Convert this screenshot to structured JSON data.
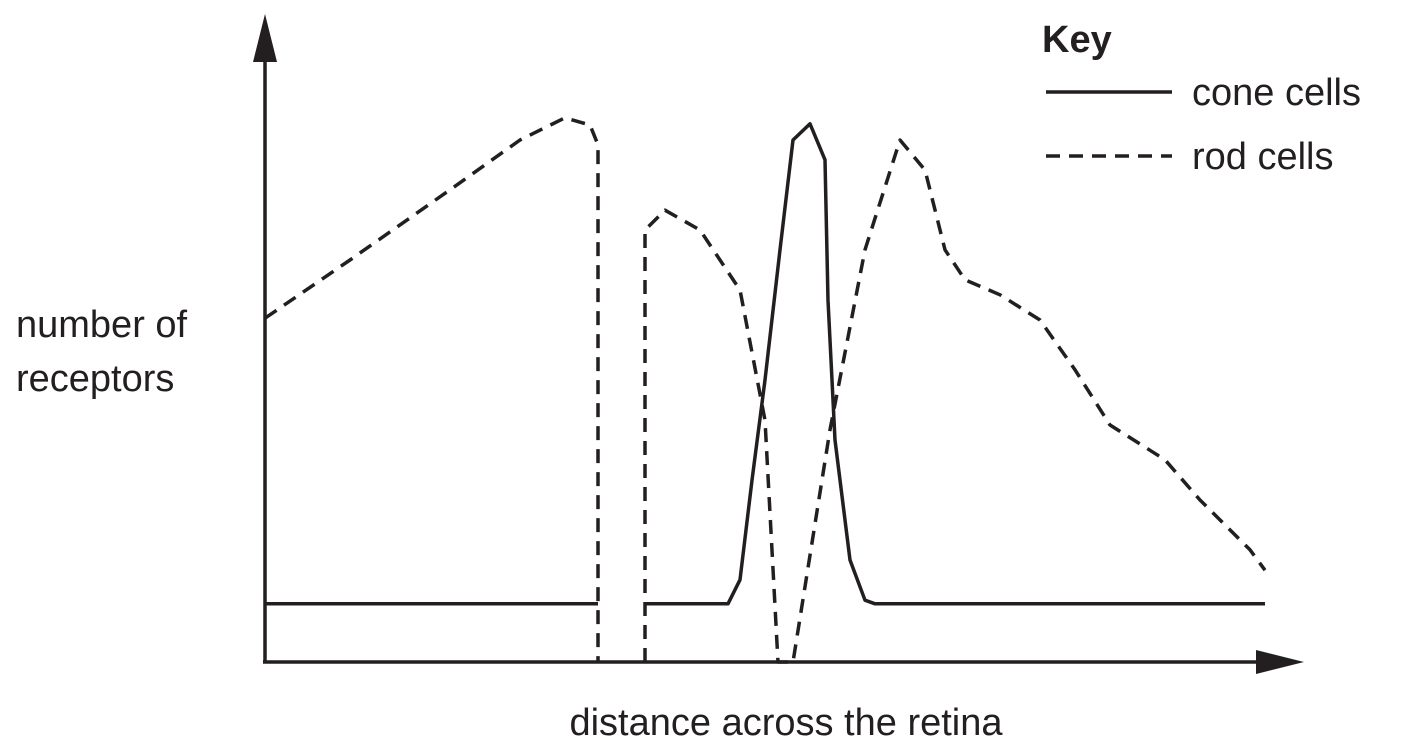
{
  "chart_data": {
    "type": "line",
    "x_label": "distance across the retina",
    "y_label": "number of receptors",
    "legend_title": "Key",
    "xlim": [
      0,
      100
    ],
    "ylim": [
      0,
      100
    ],
    "series": [
      {
        "name": "cone cells",
        "color": "#231f20",
        "dash": "solid",
        "x": [
          0,
          33.3,
          35.6,
          38,
          46.3,
          47.5,
          48.7,
          50,
          51.5,
          52.8,
          54.5,
          56,
          56.3,
          57,
          58.5,
          60,
          61,
          100
        ],
        "values": [
          9.7,
          9.7,
          null,
          9.7,
          9.7,
          13.7,
          30.3,
          47,
          68.7,
          87,
          89.7,
          83.7,
          60.3,
          37,
          17,
          10.3,
          9.7,
          9.7
        ]
      },
      {
        "name": "rod cells",
        "color": "#231f20",
        "dash": "dashed",
        "x": [
          0,
          8.5,
          18.5,
          25.5,
          30,
          32.5,
          33.3,
          33.3,
          35.6,
          38,
          38,
          40,
          43.5,
          47.5,
          50,
          51.3,
          52.8,
          56.5,
          60,
          63.5,
          66,
          68,
          70,
          73.5,
          77.5,
          81,
          84.5,
          90,
          93.5,
          98.5,
          100
        ],
        "values": [
          57.3,
          67,
          78.7,
          87,
          90.7,
          89.5,
          86.2,
          0,
          null,
          0,
          72,
          75.3,
          72,
          62,
          40.3,
          0,
          0,
          38.7,
          68.7,
          87,
          82,
          68.7,
          63.7,
          61.2,
          57,
          48.7,
          39.5,
          33.7,
          27,
          18.7,
          15.3
        ]
      }
    ]
  }
}
